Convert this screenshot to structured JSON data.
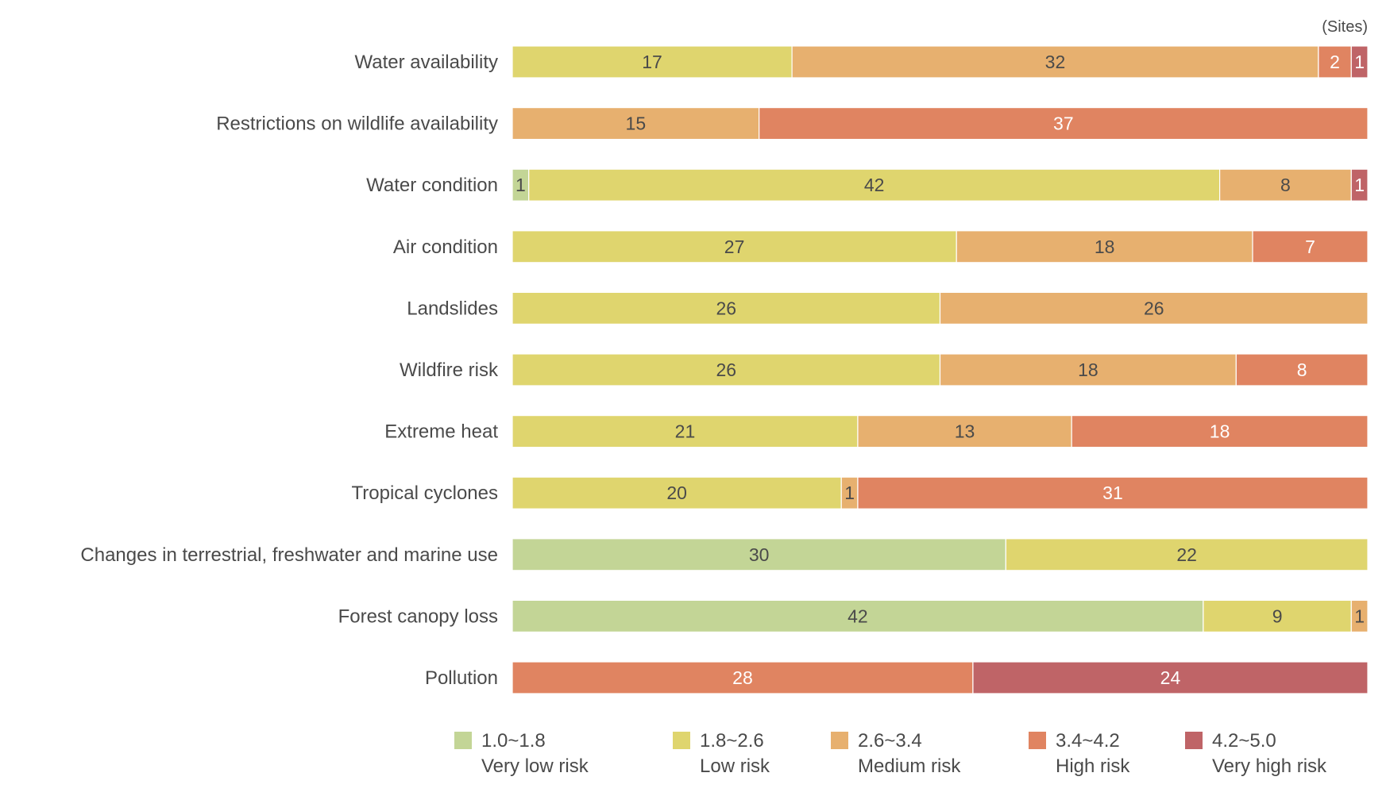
{
  "chart_data": {
    "type": "bar",
    "orientation": "horizontal",
    "stacked": true,
    "unit_label": "(Sites)",
    "categories": [
      "Water availability",
      "Restrictions on wildlife availability",
      "Water condition",
      "Air condition",
      "Landslides",
      "Wildfire risk",
      "Extreme heat",
      "Tropical cyclones",
      "Changes in terrestrial, freshwater and marine use",
      "Forest canopy loss",
      "Pollution"
    ],
    "series": [
      {
        "range": "1.0~1.8",
        "name": "Very low risk",
        "color": "#c3d596",
        "label_color": "#4a4a4a",
        "values": [
          0,
          0,
          1,
          0,
          0,
          0,
          0,
          0,
          30,
          42,
          0
        ]
      },
      {
        "range": "1.8~2.6",
        "name": "Low risk",
        "color": "#dfd56e",
        "label_color": "#4a4a4a",
        "values": [
          17,
          0,
          42,
          27,
          26,
          26,
          21,
          20,
          22,
          9,
          0
        ]
      },
      {
        "range": "2.6~3.4",
        "name": "Medium risk",
        "color": "#e7b06f",
        "label_color": "#4a4a4a",
        "values": [
          32,
          15,
          8,
          18,
          26,
          18,
          13,
          1,
          0,
          1,
          0
        ]
      },
      {
        "range": "3.4~4.2",
        "name": "High risk",
        "color": "#e08461",
        "label_color": "#ffffff",
        "values": [
          2,
          37,
          0,
          7,
          0,
          8,
          18,
          31,
          0,
          0,
          28
        ]
      },
      {
        "range": "4.2~5.0",
        "name": "Very high risk",
        "color": "#bf6467",
        "label_color": "#ffffff",
        "values": [
          1,
          0,
          1,
          0,
          0,
          0,
          0,
          0,
          0,
          0,
          24
        ]
      }
    ],
    "total_per_category": 52,
    "grid": false,
    "legend_position": "bottom"
  }
}
